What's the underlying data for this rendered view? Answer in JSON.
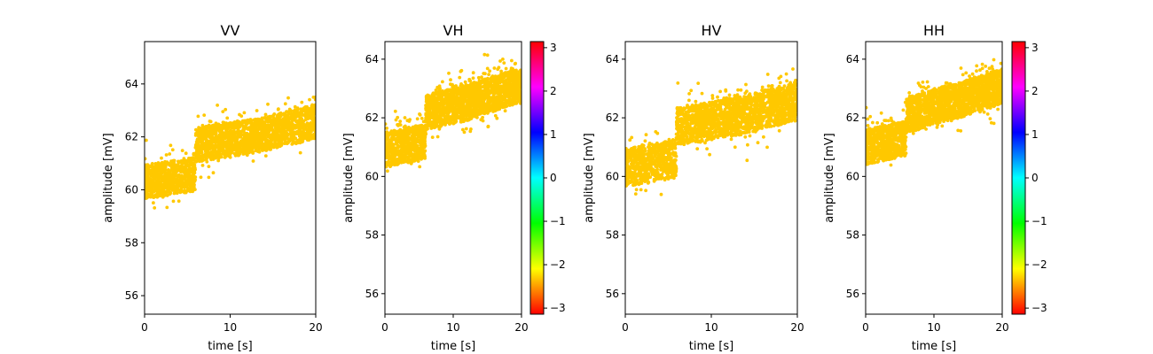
{
  "chart_data": [
    {
      "type": "scatter",
      "title": "VV",
      "xlabel": "time [s]",
      "ylabel": "amplitude [mV]",
      "xlim": [
        0,
        20
      ],
      "ylim": [
        55.3,
        65.6
      ],
      "xticks": [
        0,
        10,
        20
      ],
      "yticks": [
        56,
        58,
        60,
        62,
        64
      ],
      "marker_color": "#ffc800",
      "series": [
        {
          "values": [
            {
              "x": 0,
              "y": 60.3
            },
            {
              "x": 2,
              "y": 60.4
            },
            {
              "x": 4,
              "y": 60.5
            },
            {
              "x": 5.9,
              "y": 60.6
            },
            {
              "x": 6.0,
              "y": 61.7
            },
            {
              "x": 8,
              "y": 61.8
            },
            {
              "x": 10,
              "y": 61.9
            },
            {
              "x": 12,
              "y": 62.0
            },
            {
              "x": 14,
              "y": 62.1
            },
            {
              "x": 16,
              "y": 62.3
            },
            {
              "x": 18,
              "y": 62.4
            },
            {
              "x": 20,
              "y": 62.6
            }
          ]
        }
      ],
      "spread": 1.3,
      "colorbar": false
    },
    {
      "type": "scatter",
      "title": "VH",
      "xlabel": "time [s]",
      "ylabel": "amplitude [mV]",
      "xlim": [
        0,
        20
      ],
      "ylim": [
        55.3,
        64.6
      ],
      "xticks": [
        0,
        10,
        20
      ],
      "yticks": [
        56,
        58,
        60,
        62,
        64
      ],
      "marker_color": "#ffc800",
      "series": [
        {
          "values": [
            {
              "x": 0,
              "y": 60.9
            },
            {
              "x": 2,
              "y": 61.0
            },
            {
              "x": 4,
              "y": 61.1
            },
            {
              "x": 5.9,
              "y": 61.2
            },
            {
              "x": 6.0,
              "y": 62.2
            },
            {
              "x": 8,
              "y": 62.3
            },
            {
              "x": 10,
              "y": 62.4
            },
            {
              "x": 12,
              "y": 62.5
            },
            {
              "x": 14,
              "y": 62.7
            },
            {
              "x": 16,
              "y": 62.8
            },
            {
              "x": 18,
              "y": 63.0
            },
            {
              "x": 20,
              "y": 63.1
            }
          ]
        }
      ],
      "spread": 1.2,
      "colorbar": true,
      "colorbar_ticks": [
        -3,
        -2,
        -1,
        0,
        1,
        2,
        3
      ],
      "colorbar_range": [
        -3.14,
        3.14
      ]
    },
    {
      "type": "scatter",
      "title": "HV",
      "xlabel": "time [s]",
      "ylabel": "amplitude [mV]",
      "xlim": [
        0,
        20
      ],
      "ylim": [
        55.3,
        64.6
      ],
      "xticks": [
        0,
        10,
        20
      ],
      "yticks": [
        56,
        58,
        60,
        62,
        64
      ],
      "marker_color": "#ffc800",
      "series": [
        {
          "values": [
            {
              "x": 0,
              "y": 60.3
            },
            {
              "x": 2,
              "y": 60.4
            },
            {
              "x": 4,
              "y": 60.5
            },
            {
              "x": 5.9,
              "y": 60.6
            },
            {
              "x": 6.0,
              "y": 61.7
            },
            {
              "x": 8,
              "y": 61.8
            },
            {
              "x": 10,
              "y": 61.9
            },
            {
              "x": 12,
              "y": 62.0
            },
            {
              "x": 14,
              "y": 62.1
            },
            {
              "x": 16,
              "y": 62.3
            },
            {
              "x": 18,
              "y": 62.4
            },
            {
              "x": 20,
              "y": 62.6
            }
          ]
        }
      ],
      "spread": 1.3,
      "colorbar": false
    },
    {
      "type": "scatter",
      "title": "HH",
      "xlabel": "time [s]",
      "ylabel": "amplitude [mV]",
      "xlim": [
        0,
        20
      ],
      "ylim": [
        55.3,
        64.6
      ],
      "xticks": [
        0,
        10,
        20
      ],
      "yticks": [
        56,
        58,
        60,
        62,
        64
      ],
      "marker_color": "#ffc800",
      "series": [
        {
          "values": [
            {
              "x": 0,
              "y": 61.0
            },
            {
              "x": 2,
              "y": 61.1
            },
            {
              "x": 4,
              "y": 61.2
            },
            {
              "x": 5.9,
              "y": 61.3
            },
            {
              "x": 6.0,
              "y": 62.1
            },
            {
              "x": 8,
              "y": 62.2
            },
            {
              "x": 10,
              "y": 62.4
            },
            {
              "x": 12,
              "y": 62.5
            },
            {
              "x": 14,
              "y": 62.6
            },
            {
              "x": 16,
              "y": 62.8
            },
            {
              "x": 18,
              "y": 62.9
            },
            {
              "x": 20,
              "y": 63.1
            }
          ]
        }
      ],
      "spread": 1.2,
      "colorbar": true,
      "colorbar_ticks": [
        -3,
        -2,
        -1,
        0,
        1,
        2,
        3
      ],
      "colorbar_range": [
        -3.14,
        3.14
      ]
    }
  ]
}
